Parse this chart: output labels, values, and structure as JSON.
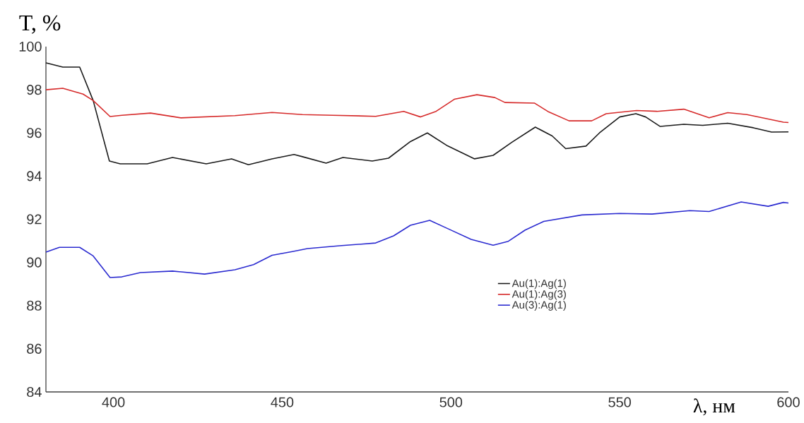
{
  "chart_data": {
    "type": "line",
    "xlabel": "λ, нм",
    "ylabel": "T, %",
    "xlim": [
      380,
      600
    ],
    "ylim": [
      84,
      100
    ],
    "xticks": [
      400,
      450,
      500,
      550,
      600
    ],
    "yticks": [
      84,
      86,
      88,
      90,
      92,
      94,
      96,
      98,
      100
    ],
    "grid": false,
    "legend": "center",
    "marker": "none",
    "line_style": "solid",
    "series": [
      {
        "name": "Au(1):Ag(1)",
        "color": "#1a1a1a",
        "x": [
          380,
          385,
          390,
          394,
          398.8,
          402,
          410,
          417.5,
          427.5,
          435,
          440,
          447,
          453.5,
          456,
          463,
          468,
          476.7,
          481.5,
          488,
          493,
          499,
          507,
          512.5,
          518,
          525,
          530,
          534,
          540,
          544,
          550,
          554.8,
          557.7,
          562,
          569,
          574.6,
          582,
          589.6,
          595,
          600
        ],
        "values": [
          99.25,
          99.05,
          99.05,
          97.5,
          94.7,
          94.57,
          94.57,
          94.86,
          94.57,
          94.8,
          94.53,
          94.8,
          95.0,
          94.9,
          94.6,
          94.86,
          94.7,
          94.83,
          95.6,
          96.0,
          95.4,
          94.8,
          94.96,
          95.56,
          96.27,
          95.86,
          95.27,
          95.39,
          96.0,
          96.74,
          96.89,
          96.74,
          96.3,
          96.4,
          96.35,
          96.45,
          96.24,
          96.04,
          96.05
        ]
      },
      {
        "name": "Au(1):Ag(3)",
        "color": "#d62a2a",
        "x": [
          380,
          385,
          391,
          394,
          399,
          402.5,
          411,
          420,
          436,
          447,
          456,
          465,
          477.7,
          486,
          491,
          495.6,
          501,
          507.7,
          513,
          516,
          524.8,
          529,
          535,
          541.7,
          546,
          555,
          561,
          569,
          576.5,
          582,
          587.7,
          598.5,
          600
        ],
        "values": [
          98.0,
          98.07,
          97.8,
          97.5,
          96.76,
          96.82,
          96.92,
          96.7,
          96.8,
          96.95,
          96.85,
          96.82,
          96.77,
          97.0,
          96.74,
          97.0,
          97.56,
          97.77,
          97.64,
          97.41,
          97.38,
          96.97,
          96.56,
          96.56,
          96.89,
          97.04,
          97.0,
          97.1,
          96.7,
          96.94,
          96.85,
          96.5,
          96.48
        ]
      },
      {
        "name": "Au(3):Ag(1)",
        "color": "#2b2bd0",
        "x": [
          380,
          384,
          390,
          394,
          399,
          402.5,
          408,
          417.5,
          427,
          436,
          441.5,
          447,
          453,
          457.5,
          467,
          477.7,
          483,
          488,
          493.7,
          499,
          506,
          512.5,
          517,
          522,
          527.5,
          538.8,
          550,
          559.6,
          570.8,
          576.5,
          586,
          594,
          598.5,
          600
        ],
        "values": [
          90.48,
          90.7,
          90.7,
          90.3,
          89.3,
          89.33,
          89.53,
          89.6,
          89.46,
          89.66,
          89.9,
          90.33,
          90.5,
          90.64,
          90.77,
          90.9,
          91.23,
          91.72,
          91.95,
          91.57,
          91.07,
          90.8,
          90.98,
          91.5,
          91.9,
          92.2,
          92.27,
          92.24,
          92.4,
          92.36,
          92.8,
          92.6,
          92.78,
          92.75
        ]
      }
    ]
  }
}
